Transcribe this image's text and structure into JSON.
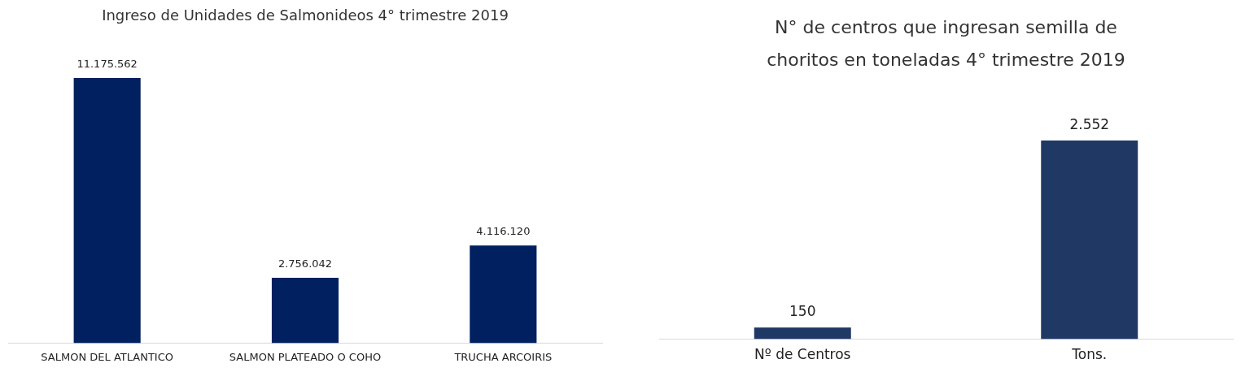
{
  "chart_data": [
    {
      "type": "bar",
      "title": "Ingreso de Unidades de Salmonideos 4° trimestre 2019",
      "categories": [
        "SALMON DEL ATLANTICO",
        "SALMON PLATEADO O COHO",
        "TRUCHA ARCOIRIS"
      ],
      "values": [
        11175562,
        2756042,
        4116120
      ],
      "color": "#002060",
      "value_labels": [
        "11.175.562",
        "2.756.042",
        "4.116.120"
      ],
      "grid": false,
      "legend": false
    },
    {
      "type": "bar",
      "title": "N° de centros que ingresan semilla de choritos en toneladas 4° trimestre 2019",
      "categories": [
        "Nº de Centros",
        "Tons."
      ],
      "values": [
        150,
        2552
      ],
      "color": "#1f3864",
      "value_labels": [
        "150",
        "2.552"
      ],
      "grid": false,
      "legend": false
    }
  ]
}
